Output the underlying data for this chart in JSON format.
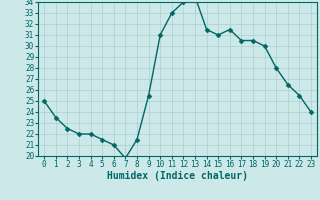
{
  "xlabel": "Humidex (Indice chaleur)",
  "ylabel": "",
  "x": [
    0,
    1,
    2,
    3,
    4,
    5,
    6,
    7,
    8,
    9,
    10,
    11,
    12,
    13,
    14,
    15,
    16,
    17,
    18,
    19,
    20,
    21,
    22,
    23
  ],
  "y": [
    25.0,
    23.5,
    22.5,
    22.0,
    22.0,
    21.5,
    21.0,
    19.8,
    21.5,
    25.5,
    31.0,
    33.0,
    34.0,
    34.5,
    31.5,
    31.0,
    31.5,
    30.5,
    30.5,
    30.0,
    28.0,
    26.5,
    25.5,
    24.0
  ],
  "line_color": "#006666",
  "marker": "D",
  "marker_size": 2.5,
  "bg_color": "#cde8e8",
  "grid_color": "#aacfcf",
  "ylim": [
    20,
    34
  ],
  "xlim": [
    -0.5,
    23.5
  ],
  "yticks": [
    20,
    21,
    22,
    23,
    24,
    25,
    26,
    27,
    28,
    29,
    30,
    31,
    32,
    33,
    34
  ],
  "xticks": [
    0,
    1,
    2,
    3,
    4,
    5,
    6,
    7,
    8,
    9,
    10,
    11,
    12,
    13,
    14,
    15,
    16,
    17,
    18,
    19,
    20,
    21,
    22,
    23
  ],
  "tick_fontsize": 5.5,
  "xlabel_fontsize": 7,
  "linewidth": 1.0
}
